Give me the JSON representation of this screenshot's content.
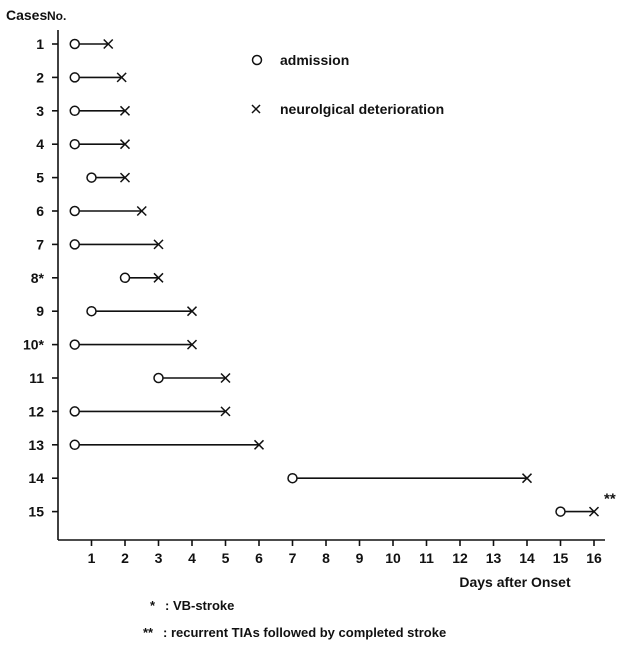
{
  "chart_data": {
    "type": "timeline",
    "ylabel_cases": "Cases",
    "ylabel_no": "No.",
    "xlabel": "Days after Onset",
    "xlim": [
      0,
      16.5
    ],
    "xticks": [
      "1",
      "2",
      "3",
      "4",
      "5",
      "6",
      "7",
      "8",
      "9",
      "10",
      "11",
      "12",
      "13",
      "14",
      "15",
      "16"
    ],
    "cases": [
      {
        "label": "1",
        "admission": 0.5,
        "deterioration": 1.5
      },
      {
        "label": "2",
        "admission": 0.5,
        "deterioration": 1.9
      },
      {
        "label": "3",
        "admission": 0.5,
        "deterioration": 2.0
      },
      {
        "label": "4",
        "admission": 0.5,
        "deterioration": 2.0
      },
      {
        "label": "5",
        "admission": 1.0,
        "deterioration": 2.0
      },
      {
        "label": "6",
        "admission": 0.5,
        "deterioration": 2.5
      },
      {
        "label": "7",
        "admission": 0.5,
        "deterioration": 3.0
      },
      {
        "label": "8*",
        "admission": 2.0,
        "deterioration": 3.0
      },
      {
        "label": "9",
        "admission": 1.0,
        "deterioration": 4.0
      },
      {
        "label": "10*",
        "admission": 0.5,
        "deterioration": 4.0
      },
      {
        "label": "11",
        "admission": 3.0,
        "deterioration": 5.0
      },
      {
        "label": "12",
        "admission": 0.5,
        "deterioration": 5.0
      },
      {
        "label": "13",
        "admission": 0.5,
        "deterioration": 6.0
      },
      {
        "label": "14",
        "admission": 7.0,
        "deterioration": 14.0
      },
      {
        "label": "15",
        "admission": 15.0,
        "deterioration": 16.0
      }
    ],
    "case15_annotation": "**",
    "legend": {
      "admission": "admission",
      "deterioration": "neurolgical deterioration"
    },
    "footnotes": [
      {
        "symbol": "*",
        "text": ": VB-stroke"
      },
      {
        "symbol": "**",
        "text": ": recurrent TIAs followed by completed stroke"
      }
    ]
  }
}
